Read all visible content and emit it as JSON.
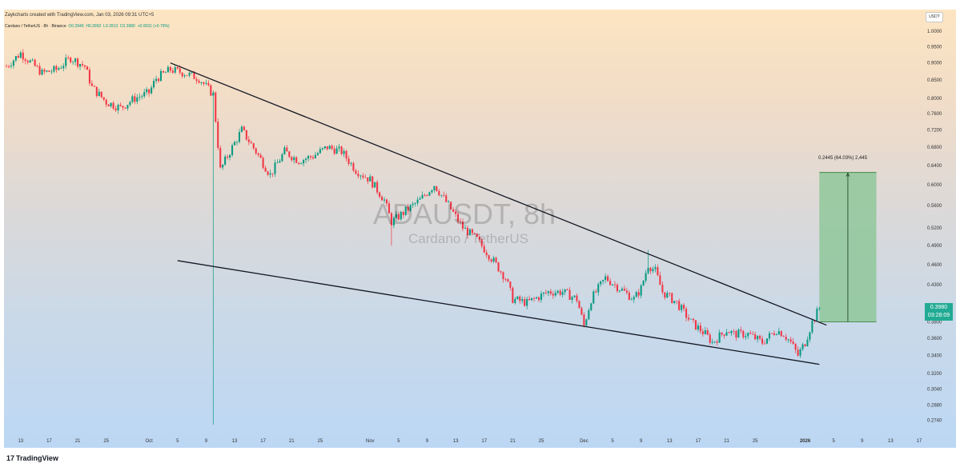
{
  "header": {
    "created_by": "Zaykcharts created with TradingView.com, Jan 03, 2026 09:31 UTC+5"
  },
  "legend": {
    "symbol": "Cardano / TetherUS · 8h · Binance",
    "open": "O0.3949",
    "high": "H0.3992",
    "low": "L0.3913",
    "close": "C0.3980",
    "change": "+0.0031 (+0.79%)"
  },
  "watermark": {
    "ticker": "ADAUSDT, 8h",
    "name": "Cardano / TetherUS"
  },
  "currency": "USDT",
  "price_tag": {
    "price": "0.3980",
    "countdown": "03:28:09"
  },
  "measure_label": "0.2445 (64.03%) 2,445",
  "branding": {
    "logo_text": "TradingView",
    "mark": "17"
  },
  "colors": {
    "up": "#089981",
    "down": "#f23645",
    "trendline": "#131722",
    "measure_fill": "#8fc79a",
    "price_tag": "#22ab94"
  },
  "chart_data": {
    "type": "candlestick",
    "y_axis": {
      "scale": "log",
      "range": [
        0.265,
        1.03
      ],
      "ticks": [
        1.0,
        0.95,
        0.9,
        0.85,
        0.8,
        0.76,
        0.72,
        0.68,
        0.64,
        0.6,
        0.56,
        0.52,
        0.49,
        0.46,
        0.43,
        0.398,
        0.38,
        0.36,
        0.34,
        0.32,
        0.304,
        0.288,
        0.274
      ],
      "tick_labels": [
        "1.0000",
        "0.9500",
        "0.9000",
        "0.8500",
        "0.8000",
        "0.7600",
        "0.7200",
        "0.6800",
        "0.6400",
        "0.6000",
        "0.5600",
        "0.5200",
        "0.4900",
        "0.4600",
        "0.4300",
        "0.3980",
        "0.3800",
        "0.3600",
        "0.3400",
        "0.3200",
        "0.3040",
        "0.2880",
        "0.2740"
      ]
    },
    "x_axis": {
      "range": [
        "2025-09-11",
        "2026-01-17"
      ],
      "ticks": [
        {
          "date": "2025-09-13",
          "label": "13",
          "bold": false
        },
        {
          "date": "2025-09-17",
          "label": "17",
          "bold": false
        },
        {
          "date": "2025-09-21",
          "label": "21",
          "bold": false
        },
        {
          "date": "2025-09-25",
          "label": "25",
          "bold": false
        },
        {
          "date": "2025-10-01",
          "label": "Oct",
          "bold": false
        },
        {
          "date": "2025-10-05",
          "label": "5",
          "bold": false
        },
        {
          "date": "2025-10-09",
          "label": "9",
          "bold": false
        },
        {
          "date": "2025-10-13",
          "label": "13",
          "bold": false
        },
        {
          "date": "2025-10-17",
          "label": "17",
          "bold": false
        },
        {
          "date": "2025-10-21",
          "label": "21",
          "bold": false
        },
        {
          "date": "2025-10-25",
          "label": "25",
          "bold": false
        },
        {
          "date": "2025-11-01",
          "label": "Nov",
          "bold": false
        },
        {
          "date": "2025-11-05",
          "label": "5",
          "bold": false
        },
        {
          "date": "2025-11-09",
          "label": "9",
          "bold": false
        },
        {
          "date": "2025-11-13",
          "label": "13",
          "bold": false
        },
        {
          "date": "2025-11-17",
          "label": "17",
          "bold": false
        },
        {
          "date": "2025-11-21",
          "label": "21",
          "bold": false
        },
        {
          "date": "2025-11-25",
          "label": "25",
          "bold": false
        },
        {
          "date": "2025-12-01",
          "label": "Dec",
          "bold": false
        },
        {
          "date": "2025-12-05",
          "label": "5",
          "bold": false
        },
        {
          "date": "2025-12-09",
          "label": "9",
          "bold": false
        },
        {
          "date": "2025-12-13",
          "label": "13",
          "bold": false
        },
        {
          "date": "2025-12-17",
          "label": "17",
          "bold": false
        },
        {
          "date": "2025-12-21",
          "label": "21",
          "bold": false
        },
        {
          "date": "2025-12-25",
          "label": "25",
          "bold": false
        },
        {
          "date": "2026-01-01",
          "label": "2026",
          "bold": true
        },
        {
          "date": "2026-01-05",
          "label": "5",
          "bold": false
        },
        {
          "date": "2026-01-09",
          "label": "9",
          "bold": false
        },
        {
          "date": "2026-01-13",
          "label": "13",
          "bold": false
        },
        {
          "date": "2026-01-17",
          "label": "17",
          "bold": false
        }
      ]
    },
    "price_path": [
      [
        "2025-09-11",
        0.89
      ],
      [
        "2025-09-13",
        0.93
      ],
      [
        "2025-09-14",
        0.91
      ],
      [
        "2025-09-16",
        0.87
      ],
      [
        "2025-09-18",
        0.88
      ],
      [
        "2025-09-20",
        0.915
      ],
      [
        "2025-09-22",
        0.89
      ],
      [
        "2025-09-23",
        0.83
      ],
      [
        "2025-09-25",
        0.79
      ],
      [
        "2025-09-27",
        0.775
      ],
      [
        "2025-09-29",
        0.8
      ],
      [
        "2025-10-01",
        0.815
      ],
      [
        "2025-10-02",
        0.855
      ],
      [
        "2025-10-04",
        0.88
      ],
      [
        "2025-10-06",
        0.87
      ],
      [
        "2025-10-08",
        0.855
      ],
      [
        "2025-10-10",
        0.81
      ],
      [
        "2025-10-11",
        0.63
      ],
      [
        "2025-10-12",
        0.66
      ],
      [
        "2025-10-14",
        0.72
      ],
      [
        "2025-10-16",
        0.67
      ],
      [
        "2025-10-18",
        0.62
      ],
      [
        "2025-10-20",
        0.67
      ],
      [
        "2025-10-22",
        0.65
      ],
      [
        "2025-10-24",
        0.66
      ],
      [
        "2025-10-26",
        0.68
      ],
      [
        "2025-10-28",
        0.67
      ],
      [
        "2025-10-30",
        0.63
      ],
      [
        "2025-11-01",
        0.61
      ],
      [
        "2025-11-03",
        0.57
      ],
      [
        "2025-11-04",
        0.53
      ],
      [
        "2025-11-06",
        0.55
      ],
      [
        "2025-11-08",
        0.57
      ],
      [
        "2025-11-10",
        0.6
      ],
      [
        "2025-11-12",
        0.56
      ],
      [
        "2025-11-14",
        0.52
      ],
      [
        "2025-11-16",
        0.5
      ],
      [
        "2025-11-18",
        0.47
      ],
      [
        "2025-11-20",
        0.44
      ],
      [
        "2025-11-21",
        0.41
      ],
      [
        "2025-11-23",
        0.405
      ],
      [
        "2025-11-26",
        0.42
      ],
      [
        "2025-11-28",
        0.42
      ],
      [
        "2025-11-30",
        0.41
      ],
      [
        "2025-12-01",
        0.375
      ],
      [
        "2025-12-02",
        0.41
      ],
      [
        "2025-12-04",
        0.44
      ],
      [
        "2025-12-06",
        0.425
      ],
      [
        "2025-12-08",
        0.41
      ],
      [
        "2025-12-09",
        0.425
      ],
      [
        "2025-12-10",
        0.46
      ],
      [
        "2025-12-11",
        0.45
      ],
      [
        "2025-12-12",
        0.42
      ],
      [
        "2025-12-14",
        0.405
      ],
      [
        "2025-12-16",
        0.38
      ],
      [
        "2025-12-18",
        0.365
      ],
      [
        "2025-12-19",
        0.355
      ],
      [
        "2025-12-21",
        0.37
      ],
      [
        "2025-12-22",
        0.365
      ],
      [
        "2025-12-24",
        0.365
      ],
      [
        "2025-12-26",
        0.355
      ],
      [
        "2025-12-28",
        0.37
      ],
      [
        "2025-12-29",
        0.365
      ],
      [
        "2025-12-30",
        0.355
      ],
      [
        "2025-12-31",
        0.34
      ],
      [
        "2026-01-01",
        0.355
      ],
      [
        "2026-01-02",
        0.38
      ],
      [
        "2026-01-03",
        0.398
      ]
    ],
    "wicks": [
      {
        "date": "2025-10-10",
        "low": 0.27
      },
      {
        "date": "2025-11-04",
        "low": 0.49
      },
      {
        "date": "2025-12-10",
        "high": 0.483
      }
    ],
    "trendlines": [
      {
        "name": "upper-resistance",
        "from": [
          "2025-10-04",
          0.9
        ],
        "to": [
          "2026-01-04",
          0.376
        ]
      },
      {
        "name": "lower-support",
        "from": [
          "2025-10-05",
          0.466
        ],
        "to": [
          "2026-01-03",
          0.33
        ]
      }
    ],
    "measure": {
      "from": [
        "2026-01-03",
        0.38
      ],
      "to": [
        "2026-01-11",
        0.625
      ],
      "label": "0.2445 (64.03%) 2,445"
    },
    "last_price": 0.398,
    "grid": false,
    "legend_position": "top-left"
  }
}
